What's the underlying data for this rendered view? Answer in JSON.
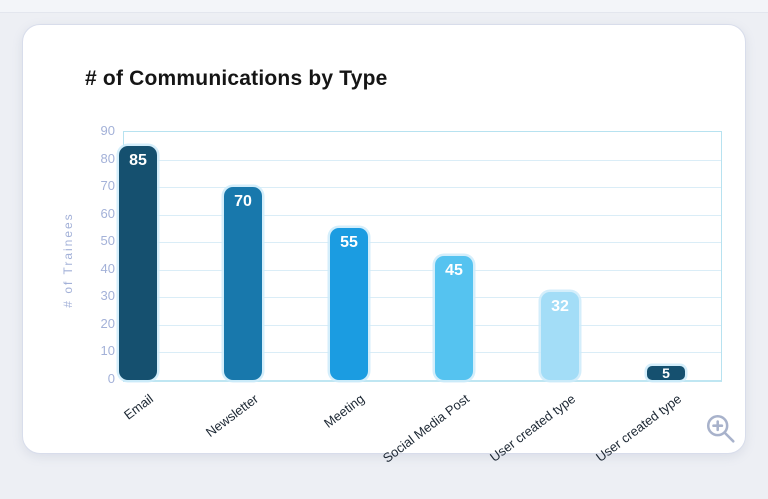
{
  "page": {
    "background_color": "#edeff4",
    "card_background": "#ffffff"
  },
  "chart_data": {
    "type": "bar",
    "title": "# of Communications by Type",
    "categories": [
      "Email",
      "Newsletter",
      "Meeting",
      "Social Media Post",
      "User created type",
      "User created type"
    ],
    "values": [
      85,
      70,
      55,
      45,
      32,
      5
    ],
    "bar_colors": [
      "#15506f",
      "#1878ac",
      "#1b9ce1",
      "#55c3f0",
      "#a3ddf7",
      "#15506f"
    ],
    "value_label_color": "#ffffff",
    "xlabel": "",
    "ylabel": "# of Trainees",
    "ylim": [
      0,
      90
    ],
    "ytick_step": 10,
    "ytick_labels": [
      "0",
      "10",
      "20",
      "30",
      "40",
      "50",
      "60",
      "70",
      "80",
      "90"
    ],
    "grid": true,
    "legend": "none",
    "x_label_rotation_deg": -37,
    "axis_label_color": "#a3b1d8",
    "x_tick_label_color": "#1c2733",
    "gridline_color": "#daedf7",
    "plot_border_color": "#b7e2f0"
  },
  "icons": {
    "zoom_in": "zoom-in-magnifier-plus",
    "zoom_in_color": "#a8b2cb"
  }
}
